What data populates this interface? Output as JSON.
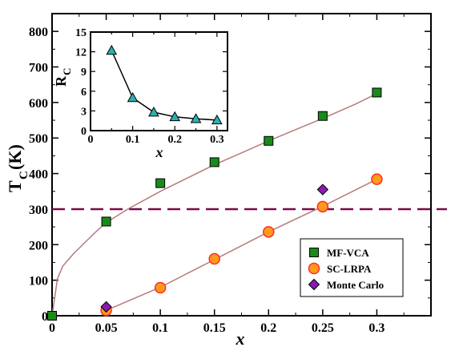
{
  "chart_data": [
    {
      "type": "scatter",
      "title": "",
      "xlabel": "x",
      "ylabel_main": "T",
      "ylabel_sub": "C",
      "ylabel_unit": "(K)",
      "xlim": [
        0,
        0.35
      ],
      "ylim": [
        0,
        850
      ],
      "x_ticks": [
        0,
        0.05,
        0.1,
        0.15,
        0.2,
        0.25,
        0.3
      ],
      "x_tick_labels": [
        "0",
        "0.05",
        "0.1",
        "0.15",
        "0.2",
        "0.25",
        "0.3"
      ],
      "y_ticks": [
        0,
        100,
        200,
        300,
        400,
        500,
        600,
        700,
        800
      ],
      "y_tick_labels": [
        "0",
        "100",
        "200",
        "300",
        "400",
        "500",
        "600",
        "700",
        "800"
      ],
      "legend_position": "bottom-right",
      "series": [
        {
          "name": "MF-VCA",
          "marker": "square",
          "color": "#1a8a1a",
          "x": [
            0,
            0.05,
            0.1,
            0.15,
            0.2,
            0.25,
            0.3
          ],
          "y": [
            0,
            265,
            373,
            432,
            492,
            562,
            628
          ]
        },
        {
          "name": "SC-LRPA",
          "marker": "circle",
          "color": "#ff9a1a",
          "edge_color": "#ff2a2a",
          "x": [
            0.05,
            0.1,
            0.15,
            0.2,
            0.25,
            0.3
          ],
          "y": [
            15,
            79,
            160,
            236,
            307,
            384
          ]
        },
        {
          "name": "Monte Carlo",
          "marker": "diamond",
          "color": "#8a1ab0",
          "x": [
            0.05,
            0.25
          ],
          "y": [
            25,
            355
          ]
        }
      ],
      "curves": [
        {
          "color": "#b87a7a",
          "x": [
            0.0,
            0.005,
            0.01,
            0.02,
            0.03,
            0.04,
            0.05,
            0.07,
            0.1,
            0.13,
            0.15,
            0.18,
            0.2,
            0.23,
            0.25,
            0.28,
            0.3
          ],
          "y": [
            0,
            105,
            140,
            175,
            205,
            235,
            262,
            300,
            350,
            395,
            425,
            465,
            492,
            530,
            555,
            595,
            625
          ]
        },
        {
          "color": "#b87a7a",
          "x": [
            0.05,
            0.1,
            0.15,
            0.2,
            0.25,
            0.3
          ],
          "y": [
            15,
            80,
            158,
            236,
            308,
            384
          ]
        }
      ],
      "reference_line": {
        "y": 300,
        "style": "dashed",
        "color": "#7a0a4a"
      }
    },
    {
      "type": "line",
      "title": "",
      "xlabel": "x",
      "ylabel_main": "R",
      "ylabel_sub": "C",
      "xlim": [
        0,
        0.325
      ],
      "ylim": [
        0,
        15
      ],
      "x_ticks": [
        0,
        0.05,
        0.1,
        0.15,
        0.2,
        0.25,
        0.3
      ],
      "x_tick_labels": [
        "0",
        "",
        "0.1",
        "",
        "0.2",
        "",
        "0.3"
      ],
      "y_ticks": [
        0,
        3,
        6,
        9,
        12,
        15
      ],
      "y_tick_labels": [
        "0",
        "3",
        "6",
        "9",
        "12",
        "15"
      ],
      "series": [
        {
          "marker": "triangle",
          "color": "#2ab0b0",
          "x": [
            0.05,
            0.1,
            0.15,
            0.2,
            0.25,
            0.3
          ],
          "y": [
            12.2,
            5.0,
            2.8,
            2.1,
            1.8,
            1.6
          ]
        }
      ]
    }
  ]
}
